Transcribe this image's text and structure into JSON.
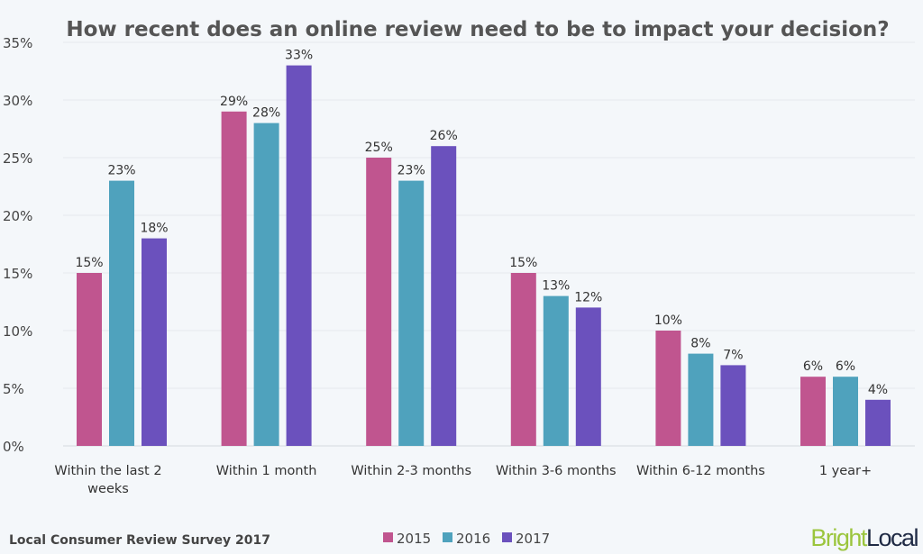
{
  "chart_data": {
    "type": "bar",
    "title": "How recent does an online review need to be to impact your decision?",
    "categories": [
      [
        "Within the last 2",
        "weeks"
      ],
      [
        "Within 1 month"
      ],
      [
        "Within 2-3 months"
      ],
      [
        "Within 3-6 months"
      ],
      [
        "Within 6-12 months"
      ],
      [
        "1 year+"
      ]
    ],
    "series": [
      {
        "name": "2015",
        "color": "#c0558f",
        "values": [
          15,
          29,
          25,
          15,
          10,
          6
        ]
      },
      {
        "name": "2016",
        "color": "#4fa2bd",
        "values": [
          23,
          28,
          23,
          13,
          8,
          6
        ]
      },
      {
        "name": "2017",
        "color": "#6b51bd",
        "values": [
          18,
          33,
          26,
          12,
          7,
          4
        ]
      }
    ],
    "ylim": [
      0,
      35
    ],
    "yticks": [
      "0%",
      "5%",
      "10%",
      "15%",
      "20%",
      "25%",
      "30%",
      "35%"
    ],
    "value_suffix": "%",
    "grid": true,
    "legend_position": "bottom"
  },
  "footer": {
    "source": "Local Consumer Review Survey 2017",
    "logo_bright": "Bright",
    "logo_local": "Local",
    "logo_bright_color": "#9bc53d",
    "logo_local_color": "#1f2a44"
  }
}
